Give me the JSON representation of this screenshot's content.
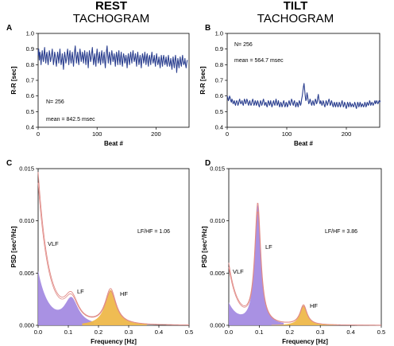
{
  "headers": {
    "left_title": "REST",
    "left_subtitle": "TACHOGRAM",
    "right_title": "TILT",
    "right_subtitle": "TACHOGRAM"
  },
  "colors": {
    "tachogram_line": "#2b3f8f",
    "psd_line": "#e08a86",
    "vlf_lf_fill": "#a48be2",
    "hf_fill": "#eeb84a"
  },
  "chart_data": [
    {
      "panel": "A",
      "type": "line",
      "xlabel": "Beat #",
      "ylabel": "R-R [sec]",
      "xlim": [
        0,
        256
      ],
      "ylim": [
        0.4,
        1.0
      ],
      "xticks": [
        0,
        100,
        200
      ],
      "yticks": [
        0.4,
        0.5,
        0.6,
        0.7,
        0.8,
        0.9,
        1.0
      ],
      "annotations": [
        "N= 256",
        "mean = 842.5 msec"
      ],
      "series": [
        {
          "values": [
            0.86,
            0.9,
            0.83,
            0.88,
            0.85,
            0.8,
            0.86,
            0.89,
            0.84,
            0.82,
            0.87,
            0.91,
            0.85,
            0.81,
            0.86,
            0.88,
            0.83,
            0.8,
            0.85,
            0.89,
            0.86,
            0.82,
            0.84,
            0.87,
            0.9,
            0.85,
            0.8,
            0.83,
            0.88,
            0.86,
            0.82,
            0.79,
            0.84,
            0.88,
            0.85,
            0.81,
            0.86,
            0.9,
            0.84,
            0.8,
            0.83,
            0.87,
            0.82,
            0.77,
            0.84,
            0.88,
            0.85,
            0.81,
            0.83,
            0.87,
            0.9,
            0.85,
            0.8,
            0.86,
            0.89,
            0.84,
            0.81,
            0.85,
            0.88,
            0.83,
            0.79,
            0.84,
            0.89,
            0.92,
            0.86,
            0.81,
            0.85,
            0.88,
            0.83,
            0.8,
            0.86,
            0.9,
            0.87,
            0.82,
            0.84,
            0.88,
            0.85,
            0.81,
            0.86,
            0.89,
            0.84,
            0.8,
            0.85,
            0.88,
            0.83,
            0.78,
            0.85,
            0.89,
            0.86,
            0.82,
            0.84,
            0.88,
            0.91,
            0.85,
            0.8,
            0.84,
            0.87,
            0.82,
            0.79,
            0.86,
            0.9,
            0.85,
            0.81,
            0.84,
            0.88,
            0.83,
            0.8,
            0.86,
            0.89,
            0.84,
            0.81,
            0.85,
            0.88,
            0.82,
            0.78,
            0.84,
            0.89,
            0.92,
            0.86,
            0.81,
            0.85,
            0.88,
            0.84,
            0.8,
            0.85,
            0.89,
            0.86,
            0.82,
            0.84,
            0.87,
            0.83,
            0.79,
            0.85,
            0.88,
            0.84,
            0.8,
            0.86,
            0.89,
            0.83,
            0.8,
            0.85,
            0.88,
            0.82,
            0.79,
            0.84,
            0.87,
            0.85,
            0.81,
            0.83,
            0.86,
            0.82,
            0.78,
            0.84,
            0.87,
            0.83,
            0.8,
            0.85,
            0.88,
            0.84,
            0.81,
            0.86,
            0.89,
            0.85,
            0.82,
            0.84,
            0.87,
            0.83,
            0.79,
            0.85,
            0.88,
            0.84,
            0.8,
            0.83,
            0.86,
            0.82,
            0.78,
            0.84,
            0.87,
            0.85,
            0.81,
            0.84,
            0.88,
            0.83,
            0.8,
            0.85,
            0.87,
            0.82,
            0.79,
            0.84,
            0.86,
            0.83,
            0.8,
            0.85,
            0.88,
            0.84,
            0.81,
            0.83,
            0.86,
            0.82,
            0.79,
            0.84,
            0.87,
            0.83,
            0.8,
            0.82,
            0.85,
            0.81,
            0.78,
            0.83,
            0.86,
            0.82,
            0.79,
            0.84,
            0.86,
            0.83,
            0.8,
            0.82,
            0.85,
            0.81,
            0.79,
            0.83,
            0.86,
            0.82,
            0.79,
            0.81,
            0.84,
            0.8,
            0.77,
            0.82,
            0.85,
            0.81,
            0.78,
            0.83,
            0.86,
            0.82,
            0.75,
            0.8,
            0.84,
            0.81,
            0.78,
            0.82,
            0.85,
            0.81,
            0.79,
            0.83,
            0.86,
            0.82,
            0.8,
            0.81,
            0.84,
            0.8,
            0.78,
            0.81,
            0.83
          ]
        }
      ]
    },
    {
      "panel": "B",
      "type": "line",
      "xlabel": "Beat #",
      "ylabel": "R-R [sec]",
      "xlim": [
        0,
        256
      ],
      "ylim": [
        0.4,
        1.0
      ],
      "xticks": [
        0,
        100,
        200
      ],
      "yticks": [
        0.4,
        0.5,
        0.6,
        0.7,
        0.8,
        0.9,
        1.0
      ],
      "annotations": [
        "N= 256",
        "mean = 564.7 msec"
      ],
      "series": [
        {
          "values": [
            0.6,
            0.59,
            0.57,
            0.58,
            0.6,
            0.59,
            0.57,
            0.56,
            0.58,
            0.57,
            0.55,
            0.56,
            0.57,
            0.55,
            0.54,
            0.56,
            0.57,
            0.56,
            0.54,
            0.55,
            0.57,
            0.58,
            0.56,
            0.55,
            0.56,
            0.57,
            0.55,
            0.54,
            0.56,
            0.58,
            0.57,
            0.55,
            0.56,
            0.58,
            0.57,
            0.55,
            0.54,
            0.56,
            0.57,
            0.55,
            0.54,
            0.55,
            0.57,
            0.58,
            0.56,
            0.54,
            0.55,
            0.57,
            0.56,
            0.54,
            0.55,
            0.57,
            0.56,
            0.54,
            0.53,
            0.55,
            0.57,
            0.56,
            0.54,
            0.55,
            0.57,
            0.58,
            0.56,
            0.54,
            0.55,
            0.56,
            0.54,
            0.53,
            0.55,
            0.57,
            0.56,
            0.54,
            0.55,
            0.57,
            0.55,
            0.53,
            0.54,
            0.56,
            0.57,
            0.55,
            0.54,
            0.56,
            0.58,
            0.56,
            0.54,
            0.55,
            0.57,
            0.55,
            0.53,
            0.54,
            0.56,
            0.55,
            0.53,
            0.54,
            0.56,
            0.57,
            0.55,
            0.53,
            0.54,
            0.56,
            0.55,
            0.53,
            0.54,
            0.56,
            0.57,
            0.55,
            0.54,
            0.56,
            0.58,
            0.57,
            0.55,
            0.54,
            0.56,
            0.57,
            0.55,
            0.53,
            0.54,
            0.56,
            0.55,
            0.53,
            0.55,
            0.57,
            0.56,
            0.54,
            0.55,
            0.58,
            0.6,
            0.63,
            0.66,
            0.68,
            0.64,
            0.6,
            0.57,
            0.58,
            0.62,
            0.6,
            0.57,
            0.55,
            0.56,
            0.58,
            0.57,
            0.55,
            0.54,
            0.56,
            0.57,
            0.55,
            0.54,
            0.56,
            0.58,
            0.57,
            0.55,
            0.56,
            0.59,
            0.61,
            0.58,
            0.56,
            0.55,
            0.57,
            0.56,
            0.54,
            0.55,
            0.57,
            0.56,
            0.54,
            0.53,
            0.55,
            0.57,
            0.56,
            0.54,
            0.55,
            0.57,
            0.58,
            0.56,
            0.54,
            0.55,
            0.57,
            0.56,
            0.54,
            0.53,
            0.55,
            0.56,
            0.54,
            0.53,
            0.55,
            0.56,
            0.54,
            0.53,
            0.54,
            0.56,
            0.55,
            0.53,
            0.54,
            0.56,
            0.57,
            0.55,
            0.53,
            0.54,
            0.56,
            0.55,
            0.53,
            0.52,
            0.54,
            0.56,
            0.55,
            0.53,
            0.54,
            0.56,
            0.55,
            0.53,
            0.54,
            0.55,
            0.54,
            0.53,
            0.54,
            0.56,
            0.55,
            0.53,
            0.52,
            0.54,
            0.56,
            0.55,
            0.53,
            0.54,
            0.56,
            0.55,
            0.53,
            0.54,
            0.55,
            0.54,
            0.53,
            0.54,
            0.56,
            0.55,
            0.53,
            0.54,
            0.56,
            0.55,
            0.54,
            0.55,
            0.57,
            0.56,
            0.54,
            0.55,
            0.56,
            0.55,
            0.54,
            0.55,
            0.56,
            0.57,
            0.55,
            0.56,
            0.57,
            0.56,
            0.55,
            0.56,
            0.57,
            0.56,
            0.57
          ]
        }
      ]
    },
    {
      "panel": "C",
      "type": "area",
      "xlabel": "Frequency [Hz]",
      "ylabel": "PSD [sec²/Hz]",
      "xlim": [
        0,
        0.5
      ],
      "ylim": [
        0,
        0.015
      ],
      "xticks": [
        0.0,
        0.1,
        0.2,
        0.3,
        0.4,
        0.5
      ],
      "yticks": [
        0.0,
        0.005,
        0.01,
        0.015
      ],
      "ytick_labels": [
        "0.000",
        "0.005",
        "0.010",
        "0.015"
      ],
      "annotations": [
        "LF/HF = 1.06"
      ],
      "band_labels": [
        "VLF",
        "LF",
        "HF"
      ],
      "components": {
        "vlf_amp": 0.0145,
        "vlf_decay": 0.035,
        "lf_center": 0.11,
        "lf_peak": 0.0025,
        "lf_width": 0.028,
        "hf_center": 0.24,
        "hf_peak": 0.0034,
        "hf_width": 0.022
      }
    },
    {
      "panel": "D",
      "type": "area",
      "xlabel": "Frequency [Hz]",
      "ylabel": "PSD [sec²/Hz]",
      "xlim": [
        0,
        0.5
      ],
      "ylim": [
        0,
        0.015
      ],
      "xticks": [
        0.0,
        0.1,
        0.2,
        0.3,
        0.4,
        0.5
      ],
      "yticks": [
        0.0,
        0.005,
        0.01,
        0.015
      ],
      "ytick_labels": [
        "0.000",
        "0.005",
        "0.010",
        "0.015"
      ],
      "annotations": [
        "LF/HF = 3.86"
      ],
      "band_labels": [
        "VLF",
        "LF",
        "HF"
      ],
      "components": {
        "vlf_amp": 0.0058,
        "vlf_decay": 0.03,
        "lf_center": 0.095,
        "lf_peak": 0.0115,
        "lf_width": 0.012,
        "hf_center": 0.245,
        "hf_peak": 0.0019,
        "hf_width": 0.014
      }
    }
  ]
}
